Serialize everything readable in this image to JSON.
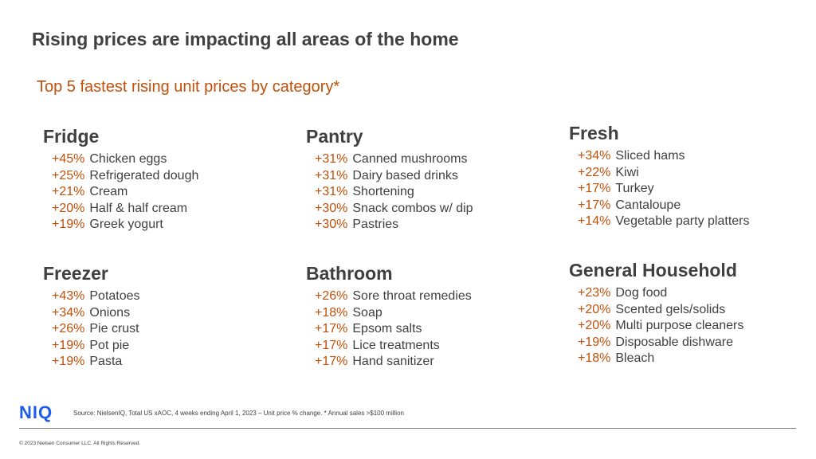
{
  "title": "Rising prices are impacting all areas of the home",
  "subtitle": "Top 5 fastest rising unit prices by category*",
  "categories": [
    {
      "name": "Fridge",
      "items": [
        {
          "pct": "+45%",
          "label": "Chicken eggs"
        },
        {
          "pct": "+25%",
          "label": "Refrigerated dough"
        },
        {
          "pct": "+21%",
          "label": "Cream"
        },
        {
          "pct": "+20%",
          "label": "Half & half cream"
        },
        {
          "pct": "+19%",
          "label": "Greek yogurt"
        }
      ]
    },
    {
      "name": "Pantry",
      "items": [
        {
          "pct": "+31%",
          "label": "Canned mushrooms"
        },
        {
          "pct": "+31%",
          "label": "Dairy based drinks"
        },
        {
          "pct": "+31%",
          "label": "Shortening"
        },
        {
          "pct": "+30%",
          "label": "Snack combos w/ dip"
        },
        {
          "pct": "+30%",
          "label": "Pastries"
        }
      ]
    },
    {
      "name": "Fresh",
      "items": [
        {
          "pct": "+34%",
          "label": "Sliced hams"
        },
        {
          "pct": "+22%",
          "label": "Kiwi"
        },
        {
          "pct": "+17%",
          "label": "Turkey"
        },
        {
          "pct": "+17%",
          "label": "Cantaloupe"
        },
        {
          "pct": "+14%",
          "label": "Vegetable party platters"
        }
      ]
    },
    {
      "name": "Freezer",
      "items": [
        {
          "pct": "+43%",
          "label": "Potatoes"
        },
        {
          "pct": "+34%",
          "label": "Onions"
        },
        {
          "pct": "+26%",
          "label": "Pie crust"
        },
        {
          "pct": "+19%",
          "label": "Pot pie"
        },
        {
          "pct": "+19%",
          "label": "Pasta"
        }
      ]
    },
    {
      "name": "Bathroom",
      "items": [
        {
          "pct": "+26%",
          "label": "Sore throat remedies"
        },
        {
          "pct": "+18%",
          "label": "Soap"
        },
        {
          "pct": "+17%",
          "label": "Epsom salts"
        },
        {
          "pct": "+17%",
          "label": "Lice treatments"
        },
        {
          "pct": "+17%",
          "label": "Hand sanitizer"
        }
      ]
    },
    {
      "name": "General Household",
      "items": [
        {
          "pct": "+23%",
          "label": "Dog food"
        },
        {
          "pct": "+20%",
          "label": "Scented gels/solids"
        },
        {
          "pct": "+20%",
          "label": "Multi purpose cleaners"
        },
        {
          "pct": "+19%",
          "label": "Disposable dishware"
        },
        {
          "pct": "+18%",
          "label": "Bleach"
        }
      ]
    }
  ],
  "footer": {
    "logo": "NIQ",
    "source": "Source: NielsenIQ, Total US xAOC,  4 weeks ending April 1,  2023  – Unit price % change. * Annual sales >$100 million",
    "copyright": "© 2023 Nielsen Consumer LLC. All Rights Reserved."
  },
  "colors": {
    "accent": "#C0500A",
    "text": "#404040",
    "brand": "#1E5BE6"
  }
}
